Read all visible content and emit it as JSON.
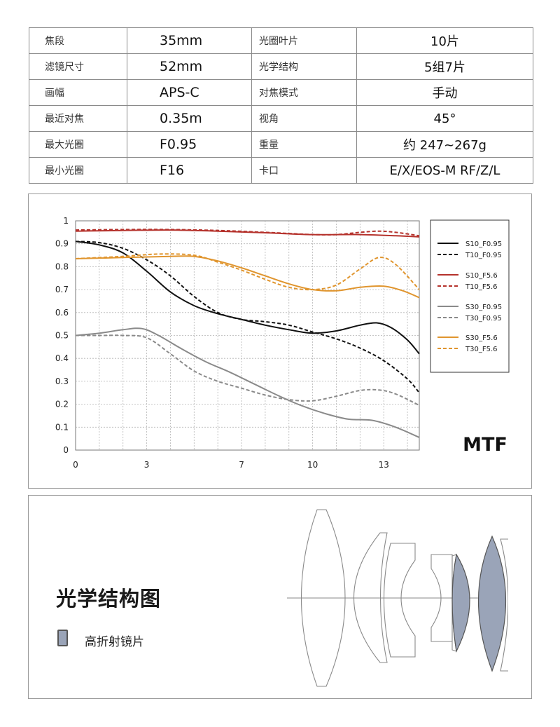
{
  "specs": [
    {
      "k1": "焦段",
      "v1": "35mm",
      "k2": "光圈叶片",
      "v2": "10片"
    },
    {
      "k1": "滤镜尺寸",
      "v1": "52mm",
      "k2": "光学结构",
      "v2": "5组7片"
    },
    {
      "k1": "画幅",
      "v1": "APS-C",
      "k2": "对焦模式",
      "v2": "手动"
    },
    {
      "k1": "最近对焦",
      "v1": "0.35m",
      "k2": "视角",
      "v2": "45°"
    },
    {
      "k1": "最大光圈",
      "v1": "F0.95",
      "k2": "重量",
      "v2": "约 247~267g"
    },
    {
      "k1": "最小光圈",
      "v1": "F16",
      "k2": "卡口",
      "v2": "E/X/EOS-M RF/Z/L"
    }
  ],
  "chart_data": {
    "type": "line",
    "title": "MTF",
    "xlabel": "",
    "ylabel": "",
    "xlim": [
      0,
      14.5
    ],
    "ylim": [
      0,
      1
    ],
    "x_ticks": [
      0,
      3,
      7,
      10,
      13
    ],
    "y_ticks": [
      0,
      0.1,
      0.2,
      0.3,
      0.4,
      0.5,
      0.6,
      0.7,
      0.8,
      0.9,
      1
    ],
    "y_tick_labels": [
      "0",
      "0.1",
      "0.2",
      "0.3",
      "0.4",
      "0.5",
      "0.6",
      "0.7",
      "0.8",
      "0.9",
      "1"
    ],
    "grid": true,
    "legend_position": "right",
    "series": [
      {
        "name": "S10_F0.95",
        "color": "#111111",
        "dashed": false,
        "points": [
          [
            0,
            0.91
          ],
          [
            1,
            0.895
          ],
          [
            2,
            0.86
          ],
          [
            3,
            0.78
          ],
          [
            4,
            0.69
          ],
          [
            5,
            0.63
          ],
          [
            6,
            0.595
          ],
          [
            7,
            0.57
          ],
          [
            8,
            0.545
          ],
          [
            9,
            0.525
          ],
          [
            10,
            0.51
          ],
          [
            11,
            0.52
          ],
          [
            12,
            0.545
          ],
          [
            12.7,
            0.555
          ],
          [
            13.3,
            0.535
          ],
          [
            14,
            0.48
          ],
          [
            14.5,
            0.42
          ]
        ]
      },
      {
        "name": "T10_F0.95",
        "color": "#111111",
        "dashed": true,
        "points": [
          [
            0,
            0.91
          ],
          [
            1,
            0.905
          ],
          [
            2,
            0.88
          ],
          [
            3,
            0.83
          ],
          [
            4,
            0.76
          ],
          [
            5,
            0.67
          ],
          [
            6,
            0.6
          ],
          [
            7,
            0.57
          ],
          [
            8,
            0.56
          ],
          [
            9,
            0.545
          ],
          [
            10,
            0.515
          ],
          [
            11,
            0.485
          ],
          [
            12,
            0.445
          ],
          [
            13,
            0.39
          ],
          [
            14,
            0.31
          ],
          [
            14.5,
            0.25
          ]
        ]
      },
      {
        "name": "S10_F5.6",
        "color": "#b5322c",
        "dashed": false,
        "points": [
          [
            0,
            0.955
          ],
          [
            2,
            0.958
          ],
          [
            4,
            0.96
          ],
          [
            6,
            0.955
          ],
          [
            8,
            0.948
          ],
          [
            10,
            0.94
          ],
          [
            12,
            0.94
          ],
          [
            13.5,
            0.935
          ],
          [
            14.5,
            0.93
          ]
        ]
      },
      {
        "name": "T10_F5.6",
        "color": "#b5322c",
        "dashed": true,
        "points": [
          [
            0,
            0.96
          ],
          [
            2,
            0.962
          ],
          [
            4,
            0.962
          ],
          [
            6,
            0.958
          ],
          [
            8,
            0.95
          ],
          [
            10,
            0.94
          ],
          [
            11,
            0.94
          ],
          [
            12,
            0.95
          ],
          [
            12.8,
            0.955
          ],
          [
            13.5,
            0.95
          ],
          [
            14.5,
            0.935
          ]
        ]
      },
      {
        "name": "S30_F0.95",
        "color": "#8a8a8a",
        "dashed": false,
        "points": [
          [
            0,
            0.5
          ],
          [
            1,
            0.51
          ],
          [
            2,
            0.525
          ],
          [
            2.8,
            0.53
          ],
          [
            3.5,
            0.5
          ],
          [
            4.5,
            0.44
          ],
          [
            5.5,
            0.385
          ],
          [
            6.5,
            0.34
          ],
          [
            7.5,
            0.29
          ],
          [
            8.5,
            0.24
          ],
          [
            9.5,
            0.195
          ],
          [
            10.5,
            0.16
          ],
          [
            11.5,
            0.135
          ],
          [
            12.5,
            0.13
          ],
          [
            13.5,
            0.1
          ],
          [
            14.5,
            0.055
          ]
        ]
      },
      {
        "name": "T30_F0.95",
        "color": "#8a8a8a",
        "dashed": true,
        "points": [
          [
            0,
            0.5
          ],
          [
            1,
            0.5
          ],
          [
            2,
            0.5
          ],
          [
            3,
            0.49
          ],
          [
            4,
            0.42
          ],
          [
            5,
            0.345
          ],
          [
            6,
            0.3
          ],
          [
            7,
            0.27
          ],
          [
            8,
            0.24
          ],
          [
            9,
            0.22
          ],
          [
            10,
            0.215
          ],
          [
            11,
            0.235
          ],
          [
            12,
            0.26
          ],
          [
            12.8,
            0.262
          ],
          [
            13.5,
            0.245
          ],
          [
            14.5,
            0.195
          ]
        ]
      },
      {
        "name": "S30_F5.6",
        "color": "#e0952e",
        "dashed": false,
        "points": [
          [
            0,
            0.835
          ],
          [
            2,
            0.84
          ],
          [
            4,
            0.845
          ],
          [
            5,
            0.845
          ],
          [
            6,
            0.825
          ],
          [
            7,
            0.795
          ],
          [
            8,
            0.76
          ],
          [
            9,
            0.725
          ],
          [
            10,
            0.7
          ],
          [
            11,
            0.695
          ],
          [
            12,
            0.71
          ],
          [
            13,
            0.715
          ],
          [
            13.8,
            0.695
          ],
          [
            14.5,
            0.665
          ]
        ]
      },
      {
        "name": "T30_F5.6",
        "color": "#e0952e",
        "dashed": true,
        "points": [
          [
            0,
            0.835
          ],
          [
            2,
            0.845
          ],
          [
            3.5,
            0.855
          ],
          [
            5,
            0.85
          ],
          [
            6,
            0.82
          ],
          [
            7,
            0.785
          ],
          [
            8,
            0.745
          ],
          [
            9,
            0.71
          ],
          [
            10,
            0.7
          ],
          [
            11,
            0.72
          ],
          [
            12,
            0.79
          ],
          [
            12.8,
            0.84
          ],
          [
            13.5,
            0.81
          ],
          [
            14.5,
            0.7
          ]
        ]
      }
    ]
  },
  "optics": {
    "title": "光学结构图",
    "legend_label": "高折射镜片",
    "legend_color": "#9aa4b8"
  }
}
